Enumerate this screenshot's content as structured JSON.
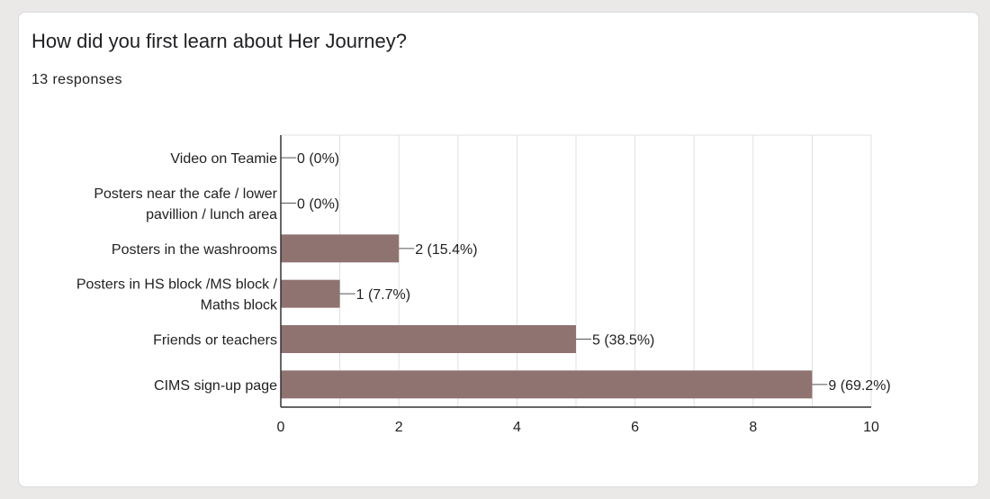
{
  "question": {
    "title": "How did you first learn about Her Journey?",
    "responses": "13 responses"
  },
  "colors": {
    "bar": "#8e7370",
    "grid": "#e0e0e0",
    "axis": "#333333",
    "text": "#222222"
  },
  "chart_data": {
    "type": "bar",
    "orientation": "horizontal",
    "title": "How did you first learn about Her Journey?",
    "categories": [
      [
        "Video on Teamie"
      ],
      [
        "Posters near the cafe / lower",
        "pavillion / lunch area"
      ],
      [
        "Posters in the washrooms"
      ],
      [
        "Posters in HS block /MS block /",
        "Maths block"
      ],
      [
        "Friends or teachers"
      ],
      [
        "CIMS sign-up page"
      ]
    ],
    "values": [
      0,
      0,
      2,
      1,
      5,
      9
    ],
    "data_labels": [
      "0 (0%)",
      "0 (0%)",
      "2 (15.4%)",
      "1 (7.7%)",
      "5 (38.5%)",
      "9 (69.2%)"
    ],
    "xlim": [
      0,
      10
    ],
    "xticks": [
      0,
      2,
      4,
      6,
      8,
      10
    ],
    "xlabel": "",
    "ylabel": "",
    "grid": true,
    "legend": "none"
  }
}
